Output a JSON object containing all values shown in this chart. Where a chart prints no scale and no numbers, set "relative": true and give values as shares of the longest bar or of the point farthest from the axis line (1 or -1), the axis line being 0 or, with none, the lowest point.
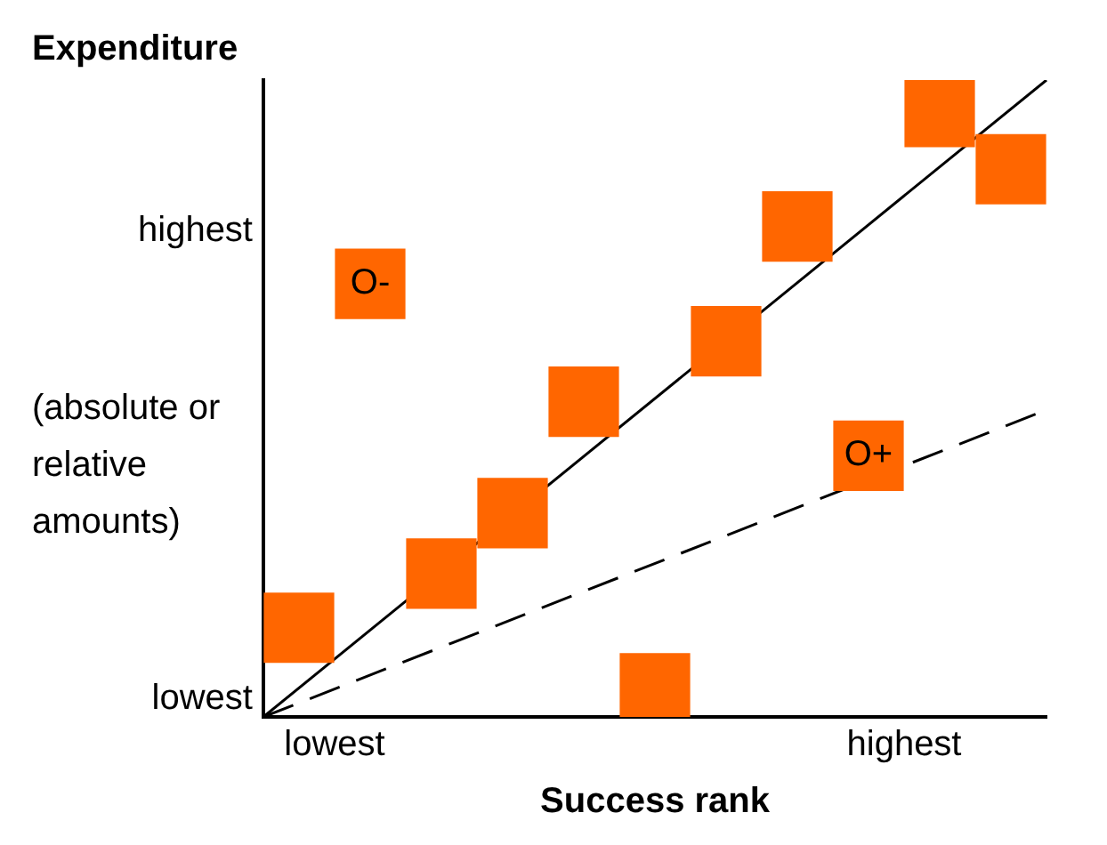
{
  "chart_data": {
    "type": "scatter",
    "xlabel": "Success rank",
    "ylabel": "Expenditure",
    "relative": true,
    "categories": [
      null,
      null,
      "lowest",
      null,
      null,
      null,
      null,
      null,
      null,
      null,
      null,
      null,
      null,
      null,
      null,
      null,
      null,
      null,
      "highest",
      null,
      null,
      null,
      null
    ],
    "series": [
      {
        "type": "scatter",
        "color": "#ff6600",
        "marker": "square",
        "values": [
          null,
          0.14,
          null,
          0.68,
          null,
          0.225,
          null,
          0.32,
          null,
          0.495,
          null,
          0.045,
          null,
          0.59,
          null,
          0.77,
          null,
          0.41,
          null,
          0.95,
          null,
          0.86,
          null
        ]
      },
      {
        "type": "line",
        "color": "#000000",
        "values": [
          0,
          null,
          null,
          null,
          null,
          null,
          null,
          null,
          null,
          null,
          null,
          null,
          null,
          null,
          null,
          null,
          null,
          null,
          null,
          null,
          null,
          null,
          1
        ],
        "line_style": "solid"
      },
      {
        "type": "line",
        "color": "#000000",
        "values": [
          0,
          null,
          null,
          null,
          null,
          null,
          null,
          null,
          null,
          null,
          null,
          null,
          null,
          null,
          null,
          null,
          null,
          null,
          null,
          null,
          null,
          null,
          0.482
        ],
        "line_style": "dashed"
      }
    ],
    "annotations": [
      "(absolute or relative amounts)",
      "highest",
      "lowest",
      {
        "text": "O-",
        "y": 0.68
      },
      {
        "text": "O+",
        "y": 0.41
      }
    ],
    "grid": false,
    "legend": false
  }
}
